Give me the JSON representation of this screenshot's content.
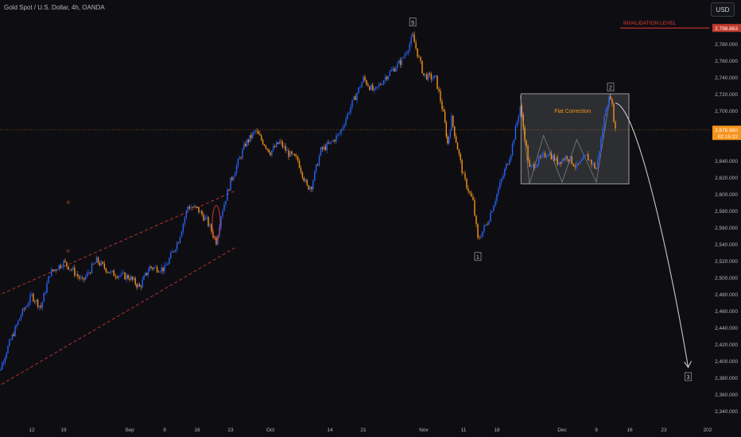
{
  "title": "Gold Spot / U.S. Dollar, 4h, OANDA",
  "currency_button": "USD",
  "colors": {
    "background": "#0e0e12",
    "bull_candle": "#2962ff",
    "bear_candle": "#f7931a",
    "channel": "#e53935",
    "invalidation": "#e53935",
    "annotation_text": "#f7931a",
    "projection": "#c8c8c8"
  },
  "annotations": {
    "invalidation_label": "INVALIDATION LEVEL",
    "flat_correction_label": "Flat Correction",
    "wave_labels": [
      {
        "text": "iii",
        "type": "minor",
        "date": "Aug 20",
        "price": 2588
      },
      {
        "text": "iv",
        "type": "minor",
        "date": "Aug 20",
        "price": 2530
      },
      {
        "text": "v",
        "type": "minor",
        "date": "Oct 30",
        "price": 2790
      },
      {
        "text": "5",
        "type": "boxed",
        "date": "Oct 30",
        "price": 2805
      },
      {
        "text": "1",
        "type": "boxed",
        "date": "Nov 14",
        "price": 2524
      },
      {
        "text": "2",
        "type": "boxed",
        "date": "Dec 12",
        "price": 2727
      },
      {
        "text": "3",
        "type": "boxed",
        "date": "Dec 28",
        "price": 2380
      },
      {
        "text": "ii",
        "type": "minor",
        "date": "Aug 1",
        "price": 2362
      }
    ]
  },
  "chart_data": {
    "type": "candlestick",
    "title": "Gold Spot / U.S. Dollar, 4h, OANDA",
    "timeframe": "4h",
    "y_axis": {
      "side": "right",
      "range": [
        2330,
        2815
      ],
      "ticks": [
        "2,800.000",
        "2,780.000",
        "2,760.000",
        "2,740.000",
        "2,720.000",
        "2,700.000",
        "2,680.000",
        "2,640.000",
        "2,620.000",
        "2,600.000",
        "2,580.000",
        "2,560.000",
        "2,540.000",
        "2,520.000",
        "2,500.000",
        "2,480.000",
        "2,460.000",
        "2,440.000",
        "2,420.000",
        "2,400.000",
        "2,380.000",
        "2,360.000",
        "2,340.000"
      ],
      "tick_values": [
        2800,
        2780,
        2760,
        2740,
        2720,
        2700,
        2680,
        2640,
        2620,
        2600,
        2580,
        2560,
        2540,
        2520,
        2500,
        2480,
        2460,
        2440,
        2420,
        2400,
        2380,
        2360,
        2340
      ]
    },
    "x_axis": {
      "ticks": [
        "12",
        "19",
        "Sep",
        "9",
        "16",
        "23",
        "Oct",
        "14",
        "21",
        "Nov",
        "11",
        "18",
        "Dec",
        "9",
        "16",
        "23",
        "202"
      ],
      "tick_dates": [
        "Aug 12",
        "Aug 19",
        "Sep 2",
        "Sep 9",
        "Sep 16",
        "Sep 23",
        "Oct 1",
        "Oct 14",
        "Oct 21",
        "Nov 1",
        "Nov 11",
        "Nov 18",
        "Dec 2",
        "Dec 9",
        "Dec 16",
        "Dec 23",
        "Jan 1"
      ]
    },
    "price_path": [
      {
        "date": "Aug 1",
        "price": 2362
      },
      {
        "date": "Aug 5",
        "price": 2412
      },
      {
        "date": "Aug 9",
        "price": 2455
      },
      {
        "date": "Aug 12",
        "price": 2478
      },
      {
        "date": "Aug 14",
        "price": 2464
      },
      {
        "date": "Aug 16",
        "price": 2505
      },
      {
        "date": "Aug 19",
        "price": 2518
      },
      {
        "date": "Aug 21",
        "price": 2508
      },
      {
        "date": "Aug 23",
        "price": 2495
      },
      {
        "date": "Aug 26",
        "price": 2520
      },
      {
        "date": "Aug 29",
        "price": 2505
      },
      {
        "date": "Sep 2",
        "price": 2500
      },
      {
        "date": "Sep 4",
        "price": 2488
      },
      {
        "date": "Sep 6",
        "price": 2512
      },
      {
        "date": "Sep 9",
        "price": 2510
      },
      {
        "date": "Sep 12",
        "price": 2545
      },
      {
        "date": "Sep 14",
        "price": 2585
      },
      {
        "date": "Sep 16",
        "price": 2582
      },
      {
        "date": "Sep 18",
        "price": 2568
      },
      {
        "date": "Sep 20",
        "price": 2543
      },
      {
        "date": "Sep 21",
        "price": 2575
      },
      {
        "date": "Sep 23",
        "price": 2615
      },
      {
        "date": "Sep 26",
        "price": 2660
      },
      {
        "date": "Sep 28",
        "price": 2675
      },
      {
        "date": "Oct 1",
        "price": 2650
      },
      {
        "date": "Oct 3",
        "price": 2662
      },
      {
        "date": "Oct 5",
        "price": 2648
      },
      {
        "date": "Oct 7",
        "price": 2640
      },
      {
        "date": "Oct 9",
        "price": 2608
      },
      {
        "date": "Oct 10",
        "price": 2610
      },
      {
        "date": "Oct 12",
        "price": 2652
      },
      {
        "date": "Oct 14",
        "price": 2660
      },
      {
        "date": "Oct 16",
        "price": 2672
      },
      {
        "date": "Oct 18",
        "price": 2700
      },
      {
        "date": "Oct 21",
        "price": 2738
      },
      {
        "date": "Oct 23",
        "price": 2722
      },
      {
        "date": "Oct 25",
        "price": 2740
      },
      {
        "date": "Oct 28",
        "price": 2760
      },
      {
        "date": "Oct 30",
        "price": 2788
      },
      {
        "date": "Nov 1",
        "price": 2742
      },
      {
        "date": "Nov 4",
        "price": 2738
      },
      {
        "date": "Nov 6",
        "price": 2695
      },
      {
        "date": "Nov 7",
        "price": 2660
      },
      {
        "date": "Nov 8",
        "price": 2690
      },
      {
        "date": "Nov 11",
        "price": 2620
      },
      {
        "date": "Nov 13",
        "price": 2590
      },
      {
        "date": "Nov 14",
        "price": 2545
      },
      {
        "date": "Nov 16",
        "price": 2566
      },
      {
        "date": "Nov 18",
        "price": 2600
      },
      {
        "date": "Nov 21",
        "price": 2650
      },
      {
        "date": "Nov 23",
        "price": 2705
      },
      {
        "date": "Nov 25",
        "price": 2630
      },
      {
        "date": "Nov 27",
        "price": 2640
      },
      {
        "date": "Nov 29",
        "price": 2650
      },
      {
        "date": "Dec 1",
        "price": 2638
      },
      {
        "date": "Dec 3",
        "price": 2645
      },
      {
        "date": "Dec 5",
        "price": 2632
      },
      {
        "date": "Dec 7",
        "price": 2645
      },
      {
        "date": "Dec 9",
        "price": 2630
      },
      {
        "date": "Dec 10",
        "price": 2665
      },
      {
        "date": "Dec 11",
        "price": 2705
      },
      {
        "date": "Dec 12",
        "price": 2718
      },
      {
        "date": "Dec 13",
        "price": 2677
      }
    ],
    "flat_correction_zone": {
      "label": "Flat Correction",
      "date_start": "Nov 23",
      "date_end": "Dec 15",
      "price_low": 2612,
      "price_high": 2720
    },
    "flat_correction_swings": [
      {
        "date": "Nov 23",
        "price": 2718
      },
      {
        "date": "Nov 25",
        "price": 2612
      },
      {
        "date": "Nov 28",
        "price": 2670
      },
      {
        "date": "Dec 2",
        "price": 2614
      },
      {
        "date": "Dec 5",
        "price": 2665
      },
      {
        "date": "Dec 9",
        "price": 2614
      },
      {
        "date": "Dec 12",
        "price": 2720
      }
    ],
    "channel": {
      "upper": [
        {
          "date": "Aug 1",
          "price": 2475
        },
        {
          "date": "Sep 22",
          "price": 2598
        }
      ],
      "lower": [
        {
          "date": "Aug 1",
          "price": 2365
        },
        {
          "date": "Sep 22",
          "price": 2530
        }
      ]
    },
    "invalidation_level": {
      "label": "INVALIDATION LEVEL",
      "price": 2798.863,
      "display": "2,798.863"
    },
    "current_price": {
      "price": 2676.96,
      "display": "2,676.960",
      "countdown": "02:15:22"
    },
    "projection": [
      {
        "date": "Dec 13",
        "price": 2709
      },
      {
        "date": "Dec 20",
        "price": 2610
      },
      {
        "date": "Dec 26",
        "price": 2470
      },
      {
        "date": "Dec 28",
        "price": 2392
      }
    ],
    "grid": false,
    "legend": "none"
  }
}
